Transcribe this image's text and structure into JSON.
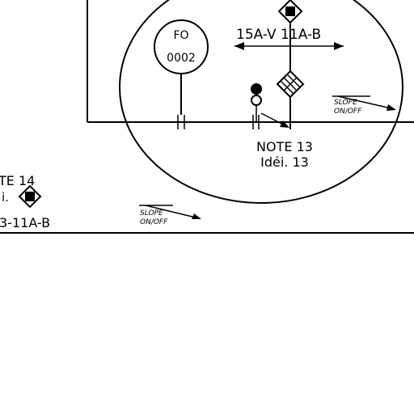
{
  "drawing": {
    "fo_symbol": {
      "line1": "FO",
      "line2": "0002"
    },
    "dimension_label": "15A-V 11A-B",
    "note_13": {
      "line1": "NOTE 13",
      "line2": "Idéi. 13"
    },
    "note_14": {
      "line1": "TE 14",
      "line2": "i.",
      "line3": "3-11A-B"
    },
    "slope_tag": {
      "line1": "SLOPE",
      "line2": "ON/OFF"
    },
    "colors": {
      "ink": "#000000",
      "paper": "#ffffff"
    }
  }
}
